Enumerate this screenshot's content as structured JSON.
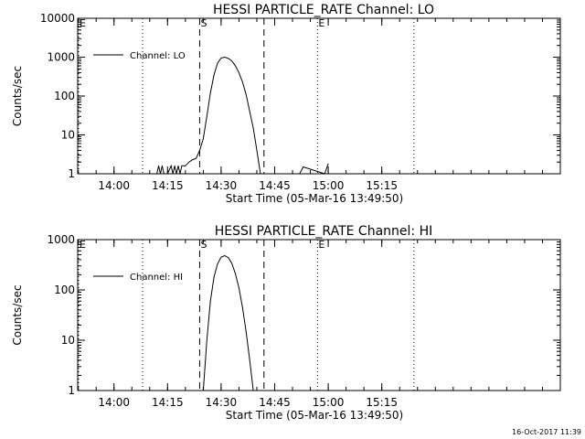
{
  "colors": {
    "background": "#ffffff",
    "ink": "#000000"
  },
  "timestamp": "16-Oct-2017 11:39",
  "chart_data": [
    {
      "type": "line",
      "title": "HESSI PARTICLE_RATE Channel: LO",
      "xlabel": "Start Time (05-Mar-16 13:49:50)",
      "ylabel": "Counts/sec",
      "y_scale": "log",
      "ylim": [
        1,
        10000
      ],
      "y_ticks": [
        "1",
        "10",
        "100",
        "1000",
        "10000"
      ],
      "x_range_minutes": [
        "13:49:50",
        "16:05:00"
      ],
      "x_ticks": [
        "14:00",
        "14:15",
        "14:30",
        "14:45",
        "15:00",
        "15:15"
      ],
      "legend": "Channel: LO",
      "legend_position": "top-left",
      "markers": [
        {
          "label": "E",
          "time": "13:49:50",
          "style": "dotted"
        },
        {
          "label": "",
          "time": "14:08",
          "style": "dotted"
        },
        {
          "label": "S",
          "time": "14:24",
          "style": "dashed"
        },
        {
          "label": "",
          "time": "14:42",
          "style": "dashed"
        },
        {
          "label": "E",
          "time": "14:57",
          "style": "dotted"
        },
        {
          "label": "",
          "time": "15:24",
          "style": "dotted"
        }
      ],
      "series": [
        {
          "x": [
            "14:12",
            "14:12.5",
            "14:13",
            "14:13.5",
            "14:14",
            "14:15",
            "14:16",
            "14:16.5",
            "14:17",
            "14:17.5",
            "14:18",
            "14:18.5",
            "14:19",
            "14:20",
            "14:21",
            "14:22",
            "14:23",
            "14:24",
            "14:25",
            "14:26",
            "14:27",
            "14:28",
            "14:29",
            "14:30",
            "14:31",
            "14:32",
            "14:33",
            "14:34",
            "14:35",
            "14:36",
            "14:37",
            "14:38",
            "14:39",
            "14:40",
            "14:41",
            "14:42",
            "14:52",
            "14:53",
            "14:59",
            "15:00"
          ],
          "y": [
            1,
            1.6,
            1,
            1.6,
            1,
            1,
            1.6,
            1,
            1.6,
            1,
            1.6,
            1,
            1.6,
            1.6,
            2,
            2.3,
            2.5,
            4,
            8,
            30,
            120,
            350,
            700,
            950,
            1000,
            930,
            800,
            600,
            400,
            230,
            110,
            40,
            15,
            4,
            1,
            1,
            1,
            1.5,
            1,
            1.8
          ]
        }
      ]
    },
    {
      "type": "line",
      "title": "HESSI PARTICLE_RATE Channel: HI",
      "xlabel": "Start Time (05-Mar-16 13:49:50)",
      "ylabel": "Counts/sec",
      "y_scale": "log",
      "ylim": [
        1,
        1000
      ],
      "y_ticks": [
        "1",
        "10",
        "100",
        "1000"
      ],
      "x_range_minutes": [
        "13:49:50",
        "16:05:00"
      ],
      "x_ticks": [
        "14:00",
        "14:15",
        "14:30",
        "14:45",
        "15:00",
        "15:15"
      ],
      "legend": "Channel: HI",
      "legend_position": "top-left",
      "markers": [
        {
          "label": "E",
          "time": "13:49:50",
          "style": "dotted"
        },
        {
          "label": "",
          "time": "14:08",
          "style": "dotted"
        },
        {
          "label": "S",
          "time": "14:24",
          "style": "dashed"
        },
        {
          "label": "",
          "time": "14:42",
          "style": "dashed"
        },
        {
          "label": "E",
          "time": "14:57",
          "style": "dotted"
        },
        {
          "label": "",
          "time": "15:24",
          "style": "dotted"
        }
      ],
      "series": [
        {
          "x": [
            "14:25",
            "14:26",
            "14:27",
            "14:28",
            "14:29",
            "14:30",
            "14:31",
            "14:32",
            "14:33",
            "14:34",
            "14:35",
            "14:36",
            "14:37",
            "14:38",
            "14:39",
            "14:40"
          ],
          "y": [
            1,
            10,
            60,
            180,
            330,
            450,
            480,
            440,
            340,
            210,
            110,
            45,
            15,
            4,
            1,
            1
          ]
        }
      ]
    }
  ]
}
